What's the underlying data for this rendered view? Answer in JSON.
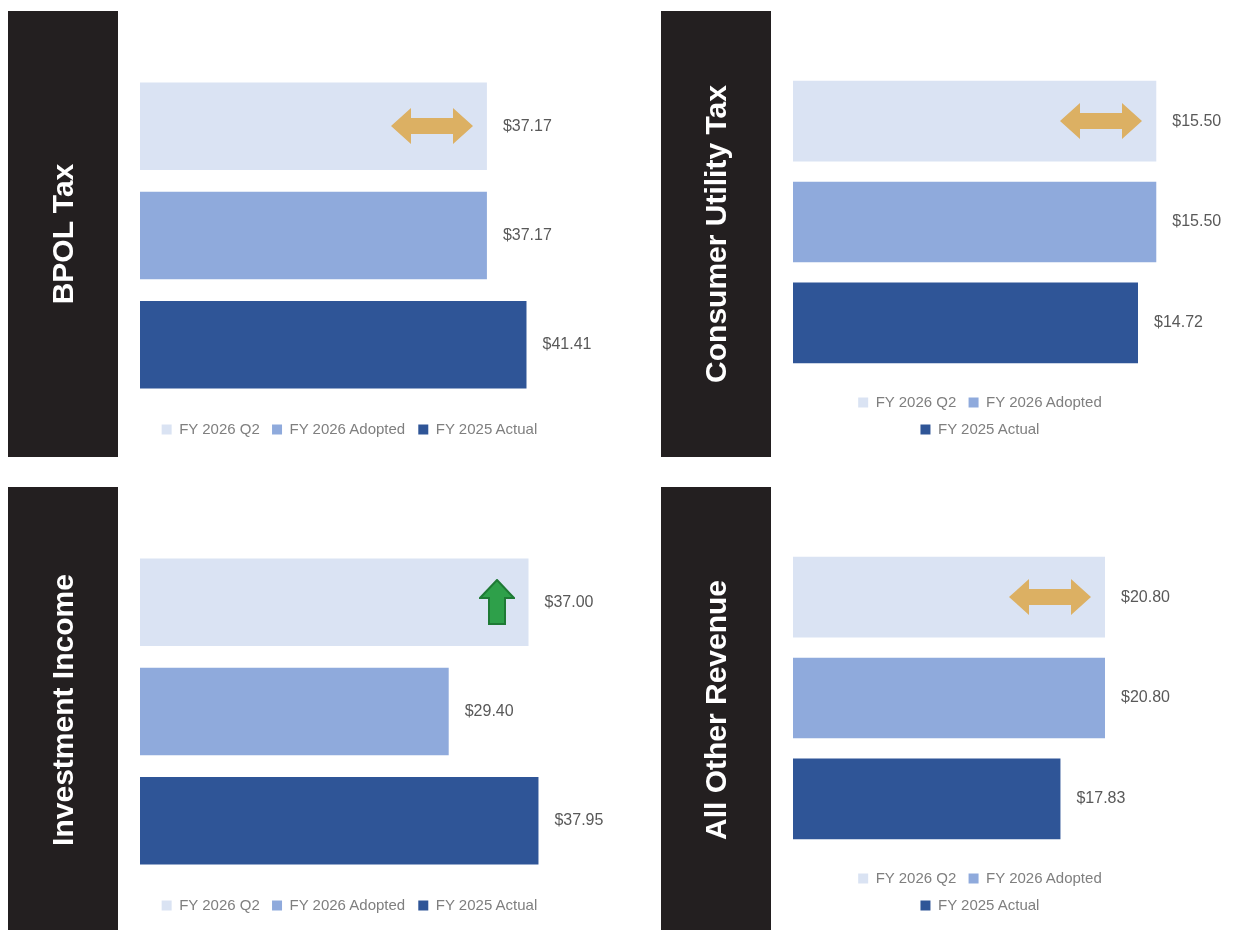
{
  "chart_data": [
    {
      "type": "bar",
      "title": "BPOL Tax",
      "orientation": "horizontal",
      "categories": [
        null
      ],
      "legend": "bottom",
      "series": [
        {
          "name": "FY 2026 Q2",
          "color": "#dae3f3",
          "values": [
            37.17
          ],
          "value_labels": [
            "$37.17"
          ]
        },
        {
          "name": "FY 2026 Adopted",
          "color": "#8faadc",
          "values": [
            37.17
          ],
          "value_labels": [
            "$37.17"
          ]
        },
        {
          "name": "FY 2025 Actual",
          "color": "#2f5597",
          "values": [
            41.41
          ],
          "value_labels": [
            "$41.41"
          ]
        }
      ]
    },
    {
      "type": "bar",
      "title": "Consumer Utility Tax",
      "orientation": "horizontal",
      "categories": [
        null
      ],
      "legend": "bottom",
      "series": [
        {
          "name": "FY 2026 Q2",
          "color": "#dae3f3",
          "values": [
            15.5
          ],
          "value_labels": [
            "$15.50"
          ]
        },
        {
          "name": "FY 2026 Adopted",
          "color": "#8faadc",
          "values": [
            15.5
          ],
          "value_labels": [
            "$15.50"
          ]
        },
        {
          "name": "FY 2025 Actual",
          "color": "#2f5597",
          "values": [
            14.72
          ],
          "value_labels": [
            "$14.72"
          ]
        }
      ]
    },
    {
      "type": "bar",
      "title": "Investment Income",
      "orientation": "horizontal",
      "categories": [
        null
      ],
      "legend": "bottom",
      "series": [
        {
          "name": "FY 2026 Q2",
          "color": "#dae3f3",
          "values": [
            37.0
          ],
          "value_labels": [
            "$37.00"
          ]
        },
        {
          "name": "FY 2026 Adopted",
          "color": "#8faadc",
          "values": [
            29.4
          ],
          "value_labels": [
            "$29.40"
          ]
        },
        {
          "name": "FY 2025 Actual",
          "color": "#2f5597",
          "values": [
            37.95
          ],
          "value_labels": [
            "$37.95"
          ]
        }
      ]
    },
    {
      "type": "bar",
      "title": "All Other Revenue",
      "orientation": "horizontal",
      "categories": [
        null
      ],
      "legend": "bottom",
      "series": [
        {
          "name": "FY 2026 Q2",
          "color": "#dae3f3",
          "values": [
            20.8
          ],
          "value_labels": [
            "$20.80"
          ]
        },
        {
          "name": "FY 2026 Adopted",
          "color": "#8faadc",
          "values": [
            20.8
          ],
          "value_labels": [
            "$20.80"
          ]
        },
        {
          "name": "FY 2025 Actual",
          "color": "#2f5597",
          "values": [
            17.83
          ],
          "value_labels": [
            "$17.83"
          ]
        }
      ]
    }
  ]
}
